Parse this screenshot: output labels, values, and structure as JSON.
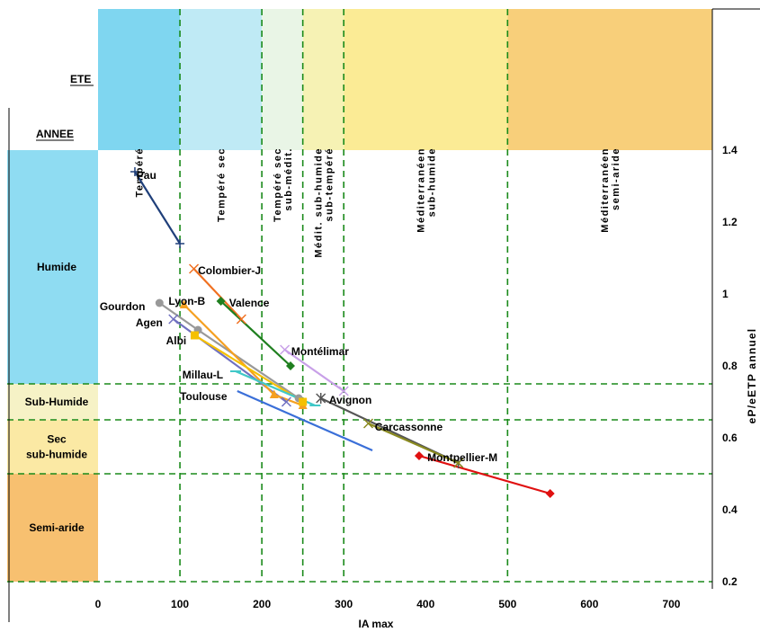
{
  "header": {
    "ete": "ETE",
    "annee": "ANNEE"
  },
  "columns": [
    {
      "lines": [
        "Tempéré"
      ],
      "color": "#7fd6f0",
      "xmin": 0,
      "xmax": 100
    },
    {
      "lines": [
        "Tempéré sec"
      ],
      "color": "#bfeaf5",
      "xmin": 100,
      "xmax": 200
    },
    {
      "lines": [
        "Tempéré sec",
        "sub-médit."
      ],
      "color": "#e9f5e6",
      "xmin": 200,
      "xmax": 250
    },
    {
      "lines": [
        "Médit. sub-humide",
        "sub-tempéré"
      ],
      "color": "#f6f2b4",
      "xmin": 250,
      "xmax": 300
    },
    {
      "lines": [
        "Méditerranéen",
        "sub-humide"
      ],
      "color": "#fbeb95",
      "xmin": 300,
      "xmax": 500
    },
    {
      "lines": [
        "Méditerranéen",
        "semi-aride"
      ],
      "color": "#f8cf7a",
      "xmin": 500,
      "xmax": 750
    }
  ],
  "rows": [
    {
      "lines": [
        "Humide"
      ],
      "color": "#8fdcf2",
      "ymin": 0.75,
      "ymax": 1.4
    },
    {
      "lines": [
        "Sub-Humide"
      ],
      "color": "#f6f2c6",
      "ymin": 0.65,
      "ymax": 0.75
    },
    {
      "lines": [
        "Sec",
        "sub-humide"
      ],
      "color": "#fbe9a4",
      "ymin": 0.5,
      "ymax": 0.65
    },
    {
      "lines": [
        "Semi-aride"
      ],
      "color": "#f7c070",
      "ymin": 0.2,
      "ymax": 0.5
    }
  ],
  "chart_data": {
    "type": "line",
    "xlabel": "IA max",
    "ylabel": "eP/eETP annuel",
    "xlim": [
      0,
      750
    ],
    "ylim": [
      0.2,
      1.4
    ],
    "xticks": [
      0,
      100,
      200,
      300,
      400,
      500,
      600,
      700
    ],
    "yticks": [
      0.2,
      0.4,
      0.6,
      0.8,
      1,
      1.2,
      1.4
    ],
    "xticklabels": [
      "0",
      "100",
      "200",
      "300",
      "400",
      "500",
      "600",
      "700"
    ],
    "yticklabels": [
      "0.2",
      "0.4",
      "0.6",
      "0.8",
      "1",
      "1.2",
      "1.4"
    ],
    "vlines": [
      100,
      200,
      250,
      300,
      500
    ],
    "hlines": [
      0.75,
      0.65,
      0.5
    ],
    "series": [
      {
        "name": "Pau",
        "color": "#1f3f7a",
        "marker": "plus",
        "x": [
          45,
          100
        ],
        "y": [
          1.34,
          1.14
        ]
      },
      {
        "name": "Colombier-J",
        "color": "#f07020",
        "marker": "x",
        "x": [
          117,
          175
        ],
        "y": [
          1.07,
          0.93
        ]
      },
      {
        "name": "Valence",
        "color": "#1f7f1f",
        "marker": "diamond",
        "x": [
          150,
          235
        ],
        "y": [
          0.98,
          0.8
        ]
      },
      {
        "name": "Gourdon",
        "color": "#999999",
        "marker": "circle",
        "x": [
          75,
          122,
          245
        ],
        "y": [
          0.975,
          0.9,
          0.71
        ]
      },
      {
        "name": "Agen",
        "color": "#7070c0",
        "marker": "x",
        "x": [
          92,
          230
        ],
        "y": [
          0.93,
          0.7
        ]
      },
      {
        "name": "Lyon-B",
        "color": "#f5a020",
        "marker": "triangle",
        "x": [
          105,
          215,
          250
        ],
        "y": [
          0.97,
          0.72,
          0.69
        ]
      },
      {
        "name": "Albi",
        "color": "#f5c000",
        "marker": "square",
        "x": [
          118,
          250
        ],
        "y": [
          0.885,
          0.7
        ]
      },
      {
        "name": "Millau-L",
        "color": "#40c8c8",
        "marker": "dash",
        "x": [
          168,
          265
        ],
        "y": [
          0.785,
          0.69
        ]
      },
      {
        "name": "Toulouse",
        "color": "#3a6fd8",
        "marker": "none",
        "x": [
          170,
          335
        ],
        "y": [
          0.73,
          0.565
        ]
      },
      {
        "name": "Montélimar",
        "color": "#c8a0e8",
        "marker": "x",
        "x": [
          228,
          300
        ],
        "y": [
          0.845,
          0.73
        ]
      },
      {
        "name": "Avignon",
        "color": "#555555",
        "marker": "star",
        "x": [
          272,
          440
        ],
        "y": [
          0.71,
          0.53
        ]
      },
      {
        "name": "Carcassonne",
        "color": "#8a8a20",
        "marker": "x",
        "x": [
          330,
          440
        ],
        "y": [
          0.64,
          0.53
        ]
      },
      {
        "name": "Montpellier-M",
        "color": "#e01010",
        "marker": "diamond",
        "x": [
          392,
          552
        ],
        "y": [
          0.55,
          0.445
        ]
      }
    ],
    "labels": [
      {
        "text": "Pau",
        "x": 47,
        "y": 1.33
      },
      {
        "text": "Colombier-J",
        "x": 122,
        "y": 1.065
      },
      {
        "text": "Valence",
        "x": 160,
        "y": 0.975
      },
      {
        "text": "Gourdon",
        "x": 2,
        "y": 0.965
      },
      {
        "text": "Lyon-B",
        "x": 86,
        "y": 0.98
      },
      {
        "text": "Agen",
        "x": 46,
        "y": 0.92
      },
      {
        "text": "Albi",
        "x": 83,
        "y": 0.87
      },
      {
        "text": "Montélimar",
        "x": 236,
        "y": 0.84
      },
      {
        "text": "Millau-L",
        "x": 103,
        "y": 0.775
      },
      {
        "text": "Toulouse",
        "x": 100,
        "y": 0.715
      },
      {
        "text": "Avignon",
        "x": 282,
        "y": 0.705
      },
      {
        "text": "Carcassonne",
        "x": 338,
        "y": 0.63
      },
      {
        "text": "Montpellier-M",
        "x": 402,
        "y": 0.545
      }
    ]
  }
}
